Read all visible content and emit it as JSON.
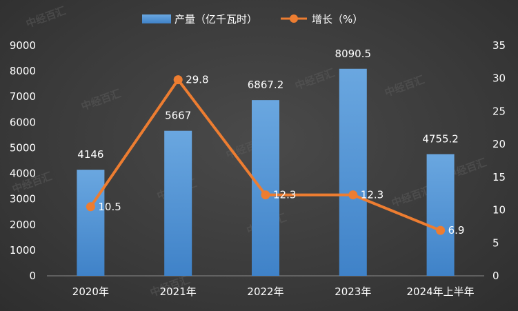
{
  "watermark": "中经百汇",
  "chart_data": {
    "type": "bar",
    "categories": [
      "2020年",
      "2021年",
      "2022年",
      "2023年",
      "2024年上半年"
    ],
    "series": [
      {
        "name": "产量（亿千瓦时）",
        "type": "bar",
        "axis": "left",
        "values": [
          4146,
          5667,
          6867.2,
          8090.5,
          4755.2
        ],
        "labels": [
          "4146",
          "5667",
          "6867.2",
          "8090.5",
          "4755.2"
        ],
        "color": "#5b9bd5"
      },
      {
        "name": "增长（%）",
        "type": "line",
        "axis": "right",
        "values": [
          10.5,
          29.8,
          12.3,
          12.3,
          6.9
        ],
        "labels": [
          "10.5",
          "29.8",
          "12.3",
          "12.3",
          "6.9"
        ],
        "color": "#ed7d31"
      }
    ],
    "y_left": {
      "min": 0,
      "max": 9000,
      "ticks": [
        "0",
        "1000",
        "2000",
        "3000",
        "4000",
        "5000",
        "6000",
        "7000",
        "8000",
        "9000"
      ]
    },
    "y_right": {
      "min": 0,
      "max": 35,
      "ticks": [
        "0",
        "5",
        "10",
        "15",
        "20",
        "25",
        "30",
        "35"
      ]
    },
    "legend": {
      "position": "top-center"
    },
    "grid": false
  }
}
